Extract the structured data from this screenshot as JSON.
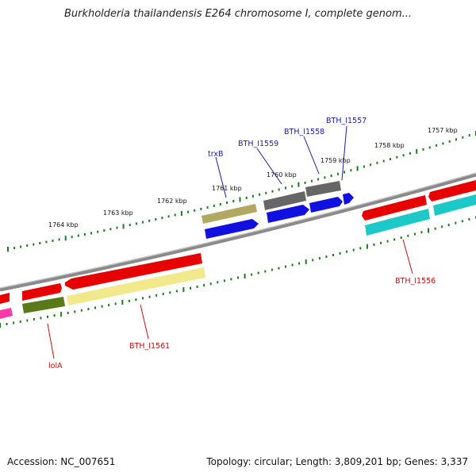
{
  "header": {
    "title": "Burkholderia thailandensis E264 chromosome I, complete genom..."
  },
  "footer": {
    "accession": "Accession: NC_007651",
    "stats": "Topology: circular; Length: 3,809,201 bp; Genes: 3,337"
  },
  "ticks": [
    {
      "label": "1757 kbp"
    },
    {
      "label": "1758 kbp"
    },
    {
      "label": "1759 kbp"
    },
    {
      "label": "1760 kbp"
    },
    {
      "label": "1761 kbp"
    },
    {
      "label": "1762 kbp"
    },
    {
      "label": "1763 kbp"
    },
    {
      "label": "1764 kbp"
    }
  ],
  "gene_labels": [
    {
      "name": "BTH_I1557",
      "color": "#1a1aa6"
    },
    {
      "name": "BTH_I1558",
      "color": "#1a1aa6"
    },
    {
      "name": "BTH_I1559",
      "color": "#1a1aa6"
    },
    {
      "name": "trxB",
      "color": "#1a1aa6"
    },
    {
      "name": "BTH_I1556",
      "color": "#c41010"
    },
    {
      "name": "BTH_I1561",
      "color": "#c41010"
    },
    {
      "name": "lolA",
      "color": "#c41010"
    }
  ],
  "colors": {
    "backbone": "#8a8a8a",
    "tick": "#1f7a1f",
    "cds_red": "#e60000",
    "cds_blue": "#1010e0",
    "cds_gray": "#666666",
    "cds_olive": "#b3a860",
    "cds_darkgreen": "#5a7a1a",
    "cds_yellow": "#f2e88c",
    "cds_cyan": "#1cc8c8",
    "cds_pink": "#ff3aa8"
  }
}
